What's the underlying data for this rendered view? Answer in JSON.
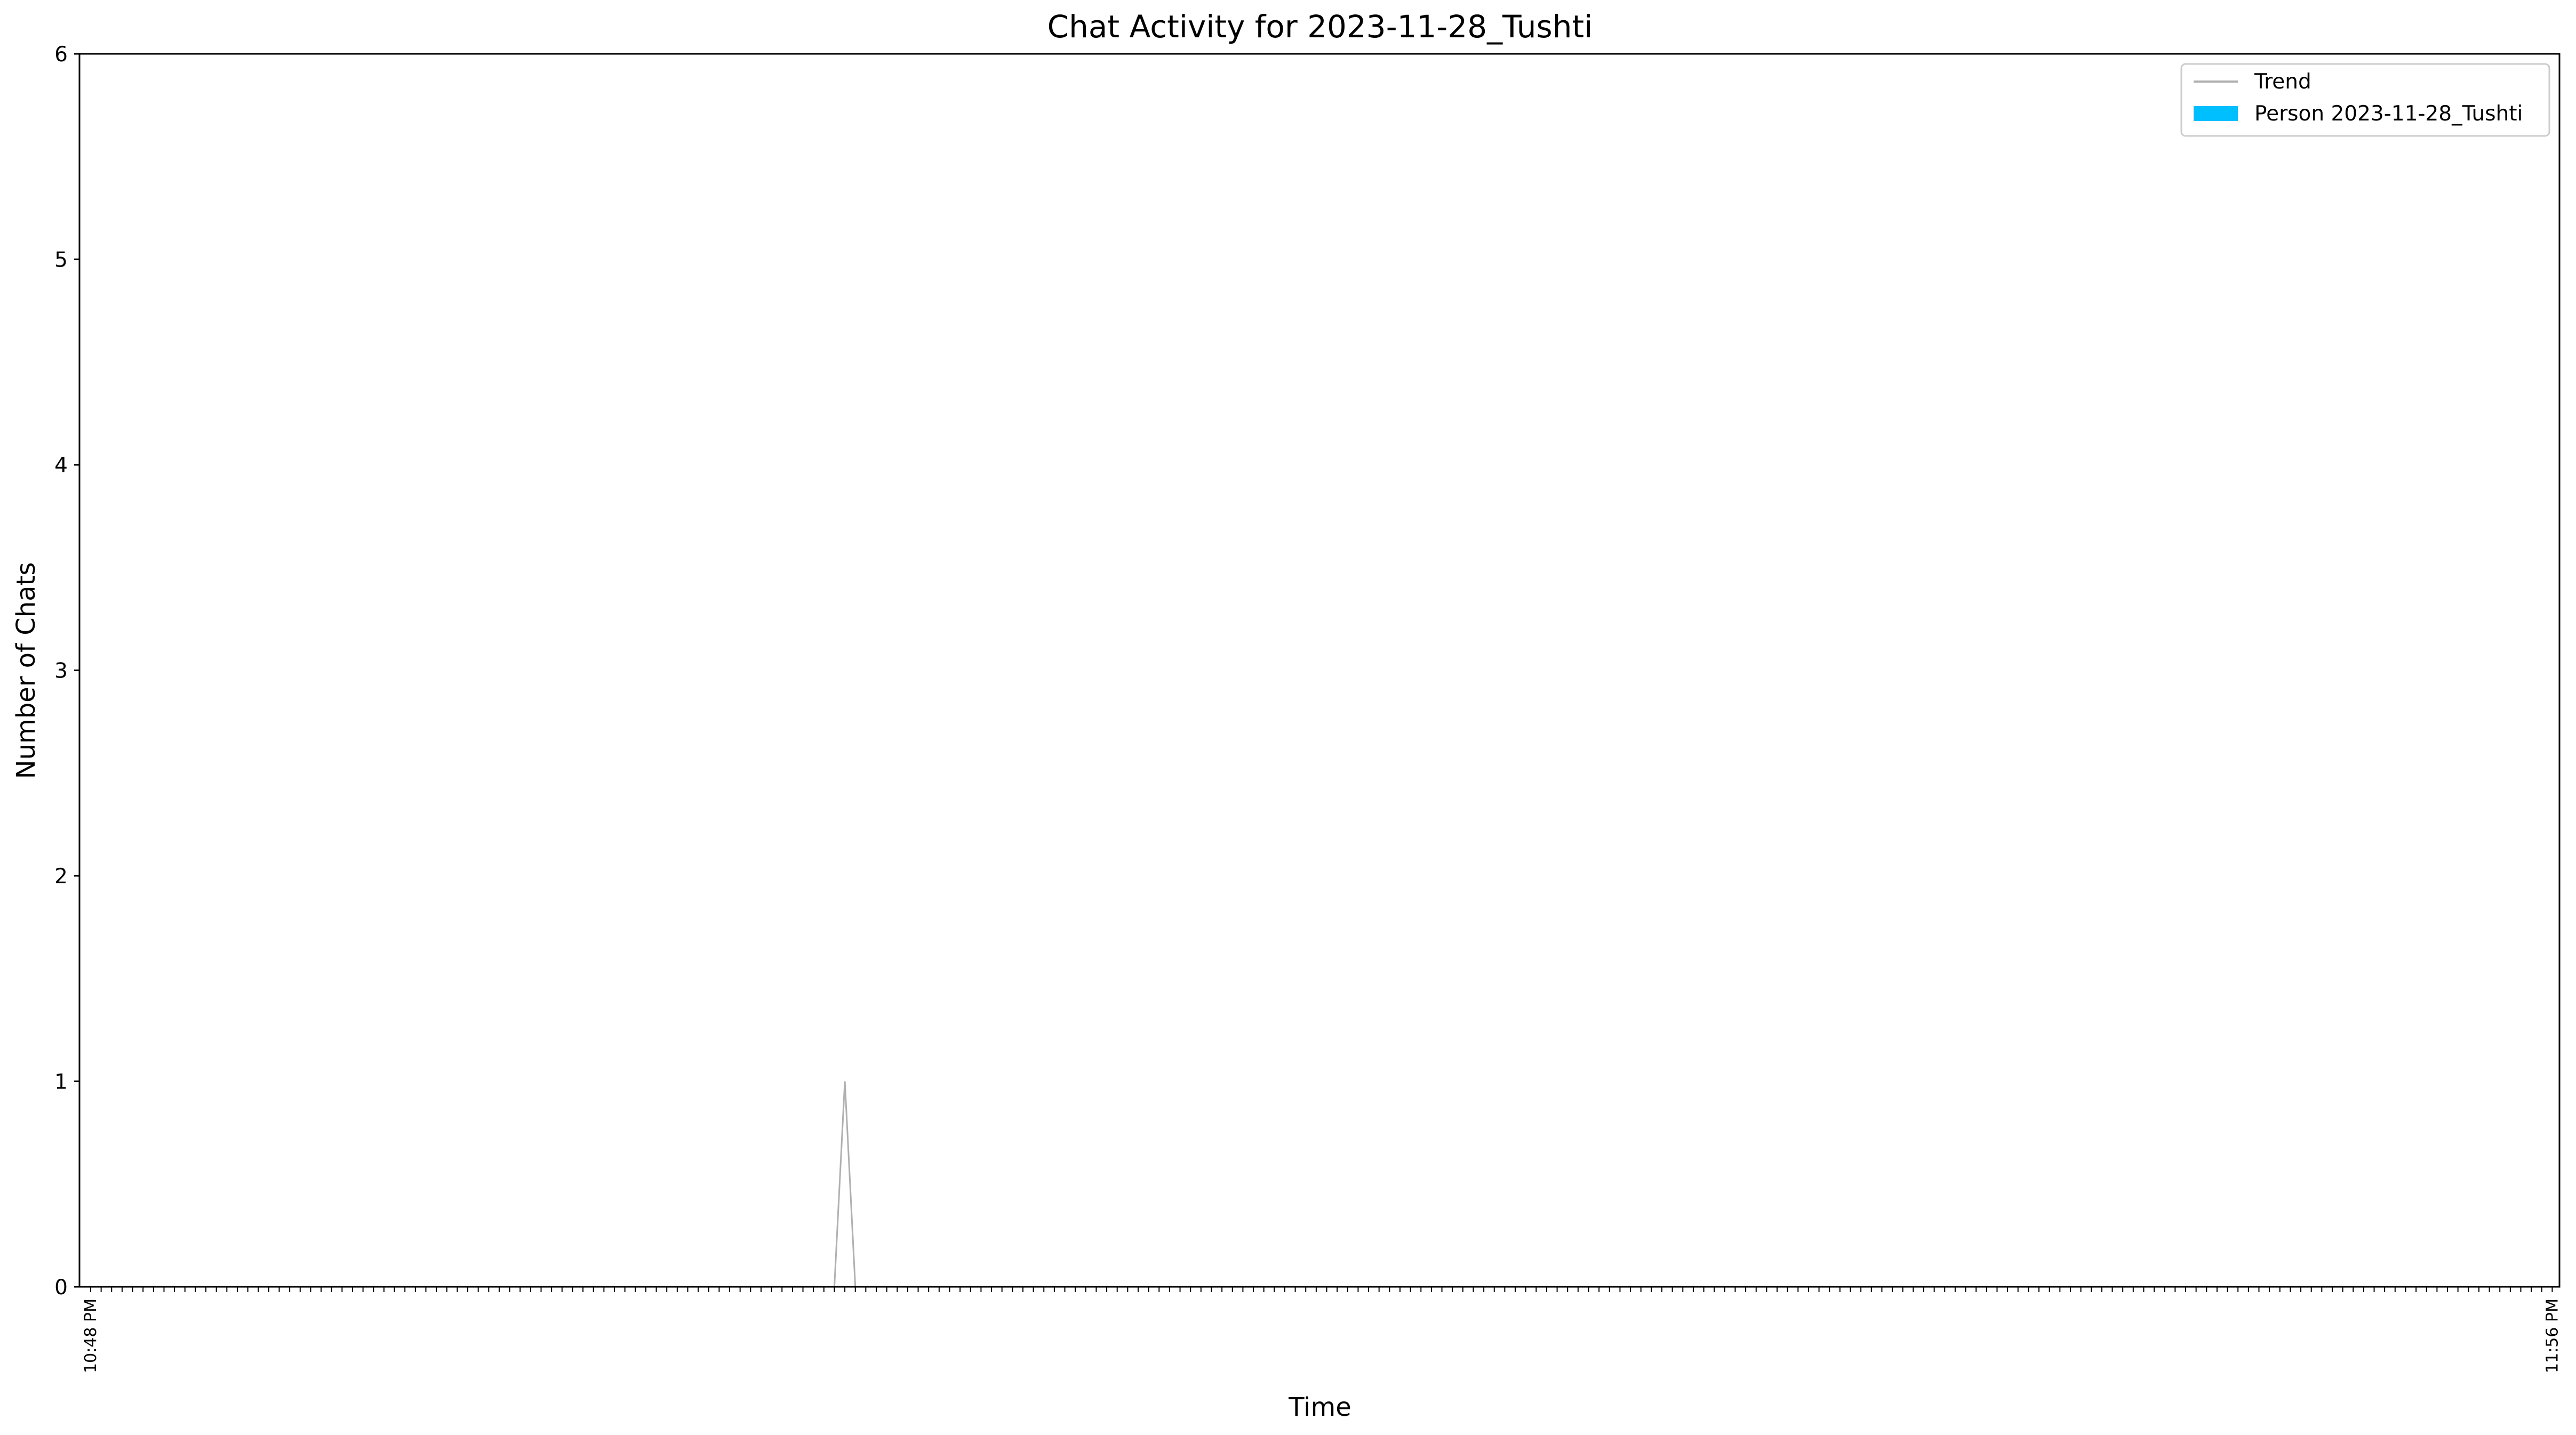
{
  "chart_data": {
    "type": "area",
    "title": "Chat Activity for 2023-11-28_Tushti",
    "xlabel": "Time",
    "ylabel": "Number of Chats",
    "ylim": [
      0,
      6
    ],
    "yticks": [
      "0",
      "1",
      "2",
      "3",
      "4",
      "5",
      "6"
    ],
    "grid": false,
    "legend_position": "upper right",
    "x_tick_count": 236,
    "x_tick_labels_first": "10:48 PM",
    "x_tick_labels_last": "11:56 PM",
    "series": [
      {
        "name": "Trend",
        "kind": "line",
        "color": "#b0b0b0",
        "points": [
          {
            "index": 71,
            "value": 0
          },
          {
            "index": 72,
            "value": 1
          },
          {
            "index": 73,
            "value": 0
          }
        ]
      },
      {
        "name": "Person 2023-11-28_Tushti",
        "kind": "area",
        "color": "#00bfff",
        "points": [
          {
            "index": 71,
            "value": 0
          },
          {
            "index": 72,
            "value": 0
          },
          {
            "index": 73,
            "value": 0
          }
        ]
      }
    ]
  }
}
